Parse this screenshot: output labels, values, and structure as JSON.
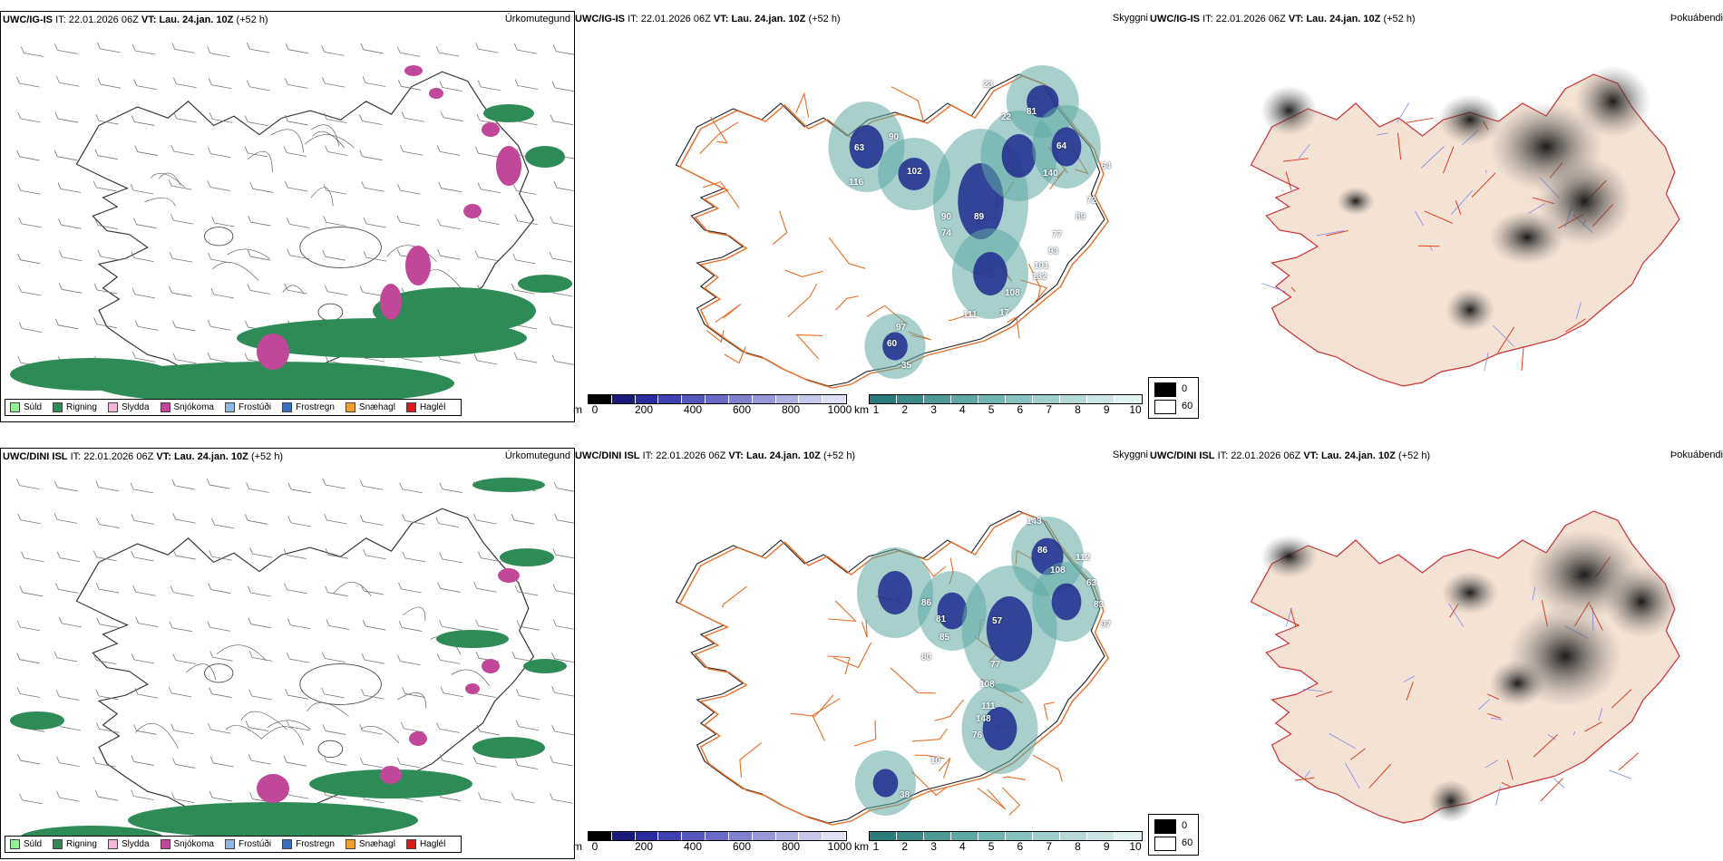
{
  "rows": [
    {
      "model": "UWC/IG-IS",
      "it_label": "IT:",
      "it_value": "22.01.2026 06Z",
      "vt_label": "VT:",
      "vt_value": "Lau. 24.jan. 10Z",
      "lead": "(+52 h)",
      "precip_title": "Úrkomutegund",
      "vis_title": "Skyggni",
      "fog_title": "Þokuábendi",
      "vis_numbers": [
        "23",
        "22",
        "81",
        "63",
        "90",
        "64",
        "102",
        "140",
        "64",
        "116",
        "72",
        "89",
        "89",
        "90",
        "74",
        "77",
        "93",
        "101",
        "132",
        "108",
        "17",
        "111",
        "97",
        "60",
        "35"
      ]
    },
    {
      "model": "UWC/DINI ISL",
      "it_label": "IT:",
      "it_value": "22.01.2026 06Z",
      "vt_label": "VT:",
      "vt_value": "Lau. 24.jan. 10Z",
      "lead": "(+52 h)",
      "precip_title": "Úrkomutegund",
      "vis_title": "Skyggni",
      "fog_title": "Þokuábendi",
      "vis_numbers": [
        "143",
        "86",
        "112",
        "108",
        "63",
        "83",
        "86",
        "81",
        "57",
        "97",
        "85",
        "80",
        "77",
        "108",
        "111",
        "148",
        "76",
        "10",
        "38"
      ]
    }
  ],
  "precip_legend": [
    {
      "label": "Súld",
      "color": "#98ee98"
    },
    {
      "label": "Rigning",
      "color": "#2e8b57"
    },
    {
      "label": "Slydda",
      "color": "#f4b6d8"
    },
    {
      "label": "Snjókoma",
      "color": "#c0479a"
    },
    {
      "label": "Frostúði",
      "color": "#8cb8e8"
    },
    {
      "label": "Frostregn",
      "color": "#3a6fc0"
    },
    {
      "label": "Snæhagl",
      "color": "#f0a030"
    },
    {
      "label": "Haglél",
      "color": "#e01818"
    }
  ],
  "height_bar": {
    "unit": "m",
    "ticks": [
      "0",
      "200",
      "400",
      "600",
      "800",
      "1000"
    ],
    "colors": [
      "#000000",
      "#1a1a7a",
      "#2b2b9e",
      "#4040b0",
      "#5656bc",
      "#6a6ac6",
      "#8080cc",
      "#9898d6",
      "#b0b0e0",
      "#c8c8ea",
      "#e0e0f4"
    ]
  },
  "km_bar": {
    "unit": "km",
    "ticks": [
      "1",
      "2",
      "3",
      "4",
      "5",
      "6",
      "7",
      "8",
      "9",
      "10"
    ],
    "colors": [
      "#2a7b7b",
      "#3b8a88",
      "#4c9996",
      "#5ea8a4",
      "#70b6b1",
      "#86c2be",
      "#9dcecb",
      "#b4dad8",
      "#cbe6e4",
      "#e2f2f1"
    ]
  },
  "fog_key": {
    "dark": "0",
    "light": "60"
  },
  "colors": {
    "iceland_fill": "#f4e2d4",
    "roads": "#e8702a",
    "rivers": "#7c8cf0",
    "rain": "#2e8b57",
    "snow": "#c0479a",
    "fog_grey": "#555555",
    "vis_blue": "#1f2a8e",
    "vis_teal": "#5fa9a4"
  }
}
